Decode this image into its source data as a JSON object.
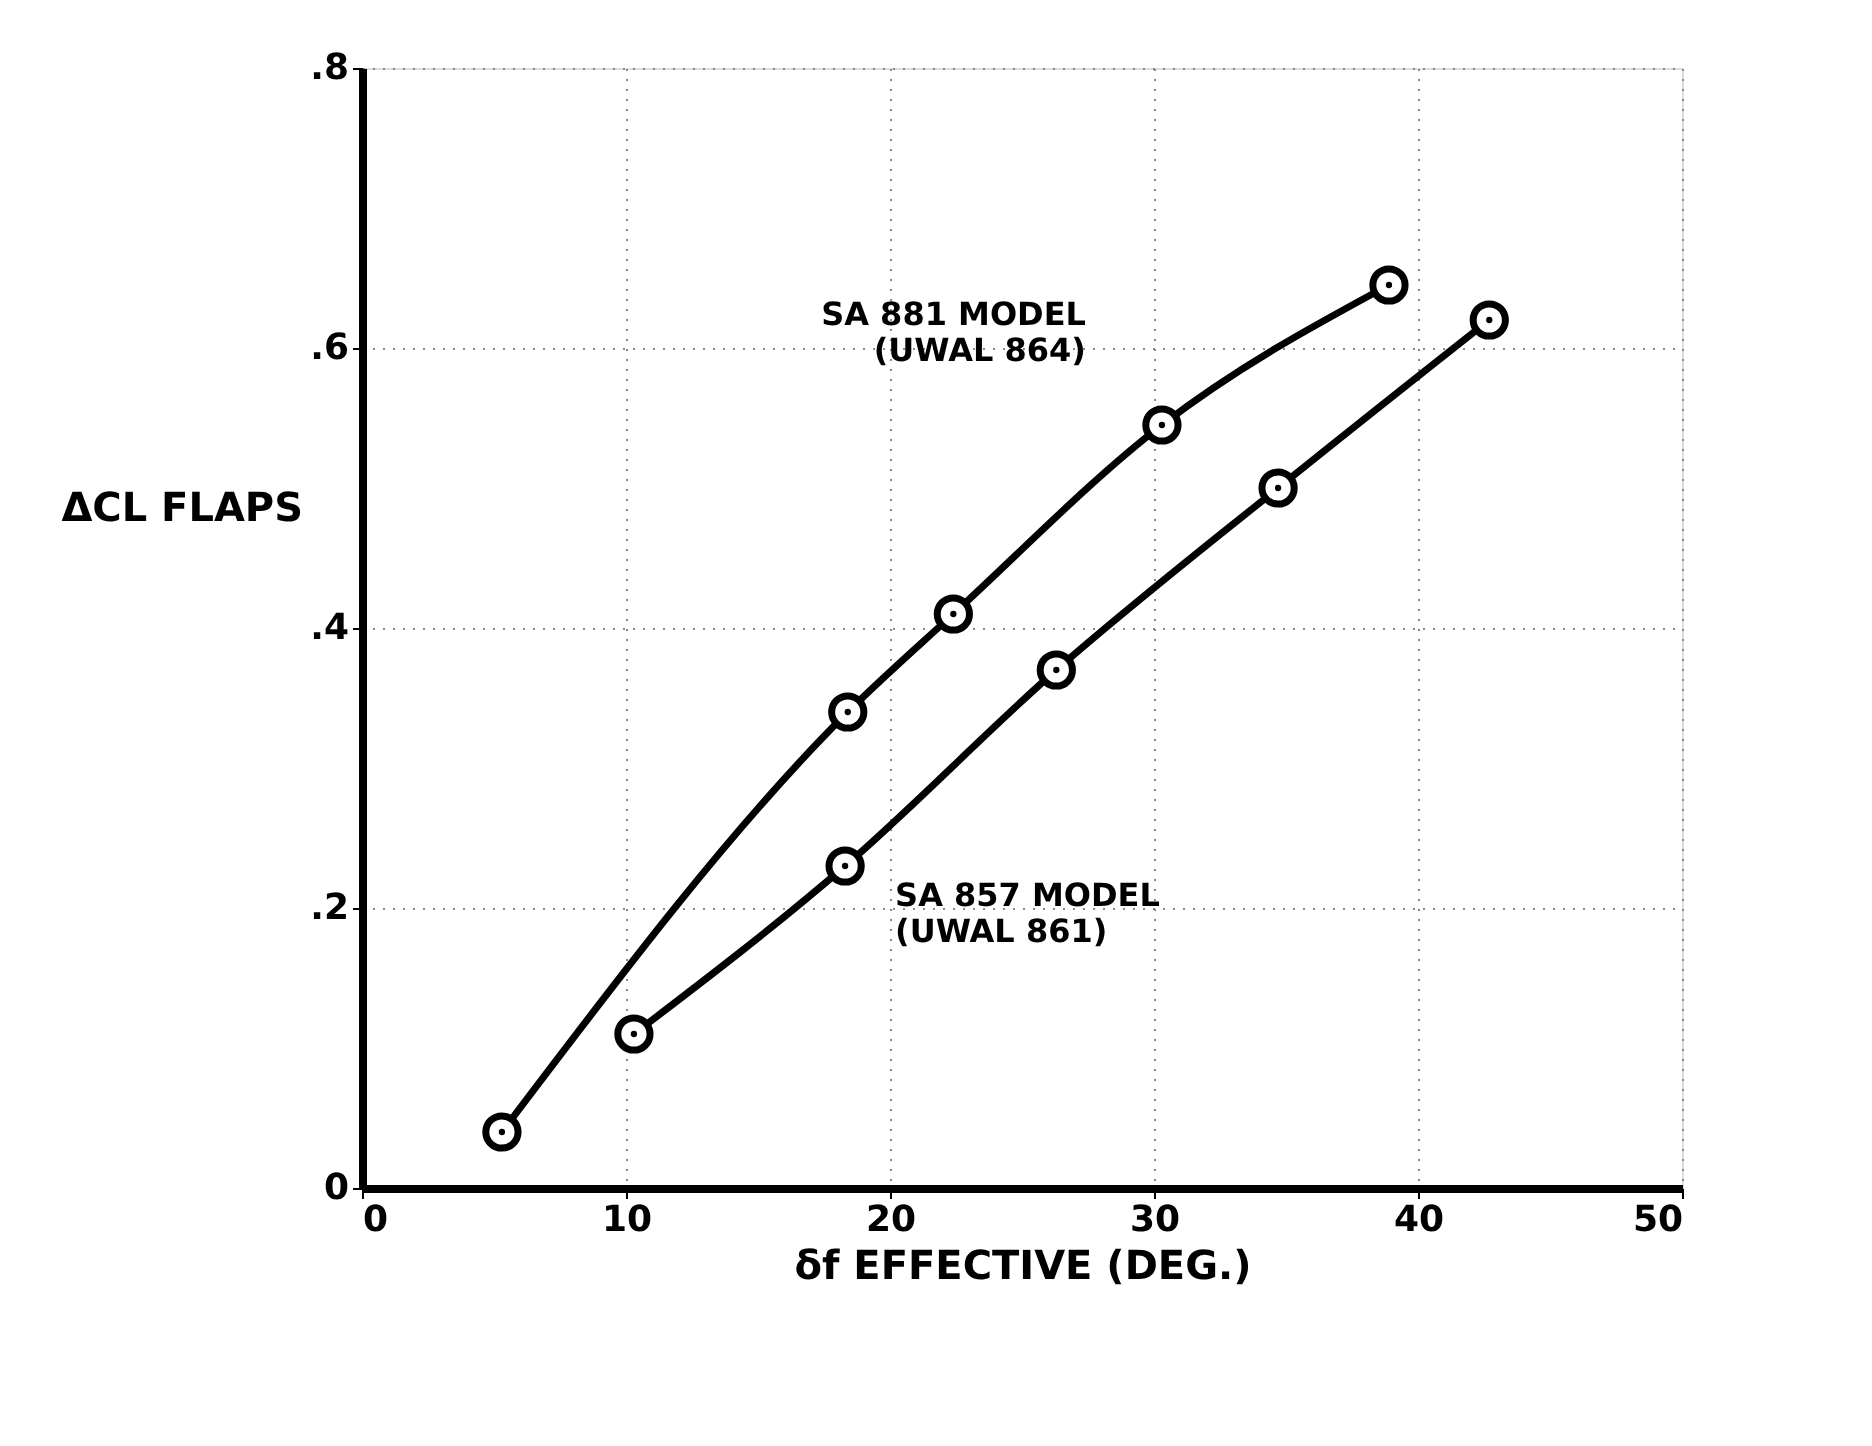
{
  "chart_data": {
    "type": "line",
    "xlabel": "δf EFFECTIVE (DEG.)",
    "ylabel": "ΔCL FLAPS",
    "xlim": [
      0,
      50
    ],
    "xticks": [
      0,
      10,
      20,
      30,
      40,
      50
    ],
    "ylim": [
      0,
      0.8
    ],
    "yticks": [
      {
        "value": 0,
        "label": "0"
      },
      {
        "value": 0.2,
        "label": ".2"
      },
      {
        "value": 0.4,
        "label": ".4"
      },
      {
        "value": 0.6,
        "label": ".6"
      },
      {
        "value": 0.8,
        "label": ".8"
      }
    ],
    "grid": true,
    "marker": "circle",
    "line_style": "solid",
    "series": [
      {
        "name": "SA 881 MODEL\n(UWAL 864)",
        "color": "#000000",
        "x": [
          5.3,
          18.4,
          22.4,
          30.3,
          38.9
        ],
        "values": [
          0.04,
          0.34,
          0.41,
          0.545,
          0.645
        ]
      },
      {
        "name": "SA 857 MODEL\n(UWAL 861)",
        "color": "#000000",
        "x": [
          10.3,
          18.3,
          26.3,
          34.7,
          42.7
        ],
        "values": [
          0.11,
          0.23,
          0.37,
          0.5,
          0.62
        ]
      }
    ]
  }
}
